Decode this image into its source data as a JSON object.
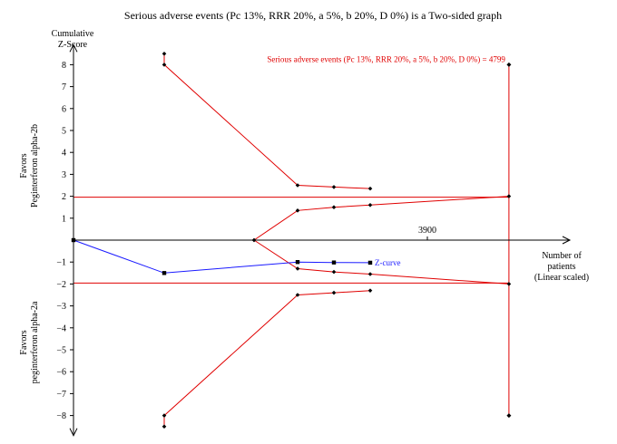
{
  "chart_data": {
    "type": "line",
    "title": "Serious adverse events (Pc 13%, RRR 20%, a 5%, b 20%, D 0%) is a Two-sided graph",
    "ylabel_line1": "Cumulative",
    "ylabel_line2": "Z-Score",
    "xlabel_lines": [
      "Number of",
      "patients",
      "(Linear scaled)"
    ],
    "favors_top": [
      "Favors",
      "Peginterferon alpha-2b"
    ],
    "favors_bottom": [
      "Favors",
      "peginterferon alpha-2a"
    ],
    "ylim": [
      -8.5,
      8.5
    ],
    "xlim": [
      0,
      5000
    ],
    "y_ticks": [
      8,
      7,
      6,
      5,
      4,
      3,
      2,
      1,
      -1,
      -2,
      -3,
      -4,
      -5,
      -6,
      -7,
      -8
    ],
    "y_tick_labels": [
      "8",
      "7",
      "6",
      "5",
      "4",
      "3",
      "2",
      "1",
      "−1",
      "−2",
      "−3",
      "−4",
      "−5",
      "−6",
      "−7",
      "−8"
    ],
    "x_tick": {
      "value": 3900,
      "label": "3900"
    },
    "required_information_size": {
      "value": 4799,
      "label": "Serious adverse events (Pc 13%, RRR 20%, a 5%, b 20%, D 0%) = 4799"
    },
    "conventional_boundary": 1.96,
    "series": [
      {
        "role": "monitoring-boundary-upper",
        "color": "#e00000",
        "points": [
          [
            1000,
            8.5
          ],
          [
            1000,
            8.0
          ],
          [
            2470,
            2.5
          ],
          [
            2870,
            2.42
          ],
          [
            3270,
            2.35
          ]
        ]
      },
      {
        "role": "futility-boundary-upper",
        "color": "#e00000",
        "points": [
          [
            1990,
            0
          ],
          [
            2470,
            1.35
          ],
          [
            2870,
            1.5
          ],
          [
            3270,
            1.6
          ],
          [
            4799,
            2.0
          ]
        ]
      },
      {
        "role": "futility-boundary-lower",
        "color": "#e00000",
        "points": [
          [
            1990,
            0
          ],
          [
            2470,
            -1.3
          ],
          [
            2870,
            -1.45
          ],
          [
            3270,
            -1.55
          ],
          [
            4799,
            -2.0
          ]
        ]
      },
      {
        "role": "monitoring-boundary-lower",
        "color": "#e00000",
        "points": [
          [
            1000,
            -8.5
          ],
          [
            1000,
            -8.0
          ],
          [
            2470,
            -2.5
          ],
          [
            2870,
            -2.4
          ],
          [
            3270,
            -2.3
          ]
        ]
      },
      {
        "name": "Z-curve",
        "color": "#1a1aff",
        "points": [
          [
            0,
            0
          ],
          [
            1000,
            -1.5
          ],
          [
            2470,
            -1.0
          ],
          [
            2870,
            -1.02
          ],
          [
            3270,
            -1.03
          ]
        ]
      }
    ],
    "colors": {
      "boundary": "#e00000",
      "zcurve": "#1a1aff",
      "axis": "#000000"
    },
    "grid": false
  }
}
